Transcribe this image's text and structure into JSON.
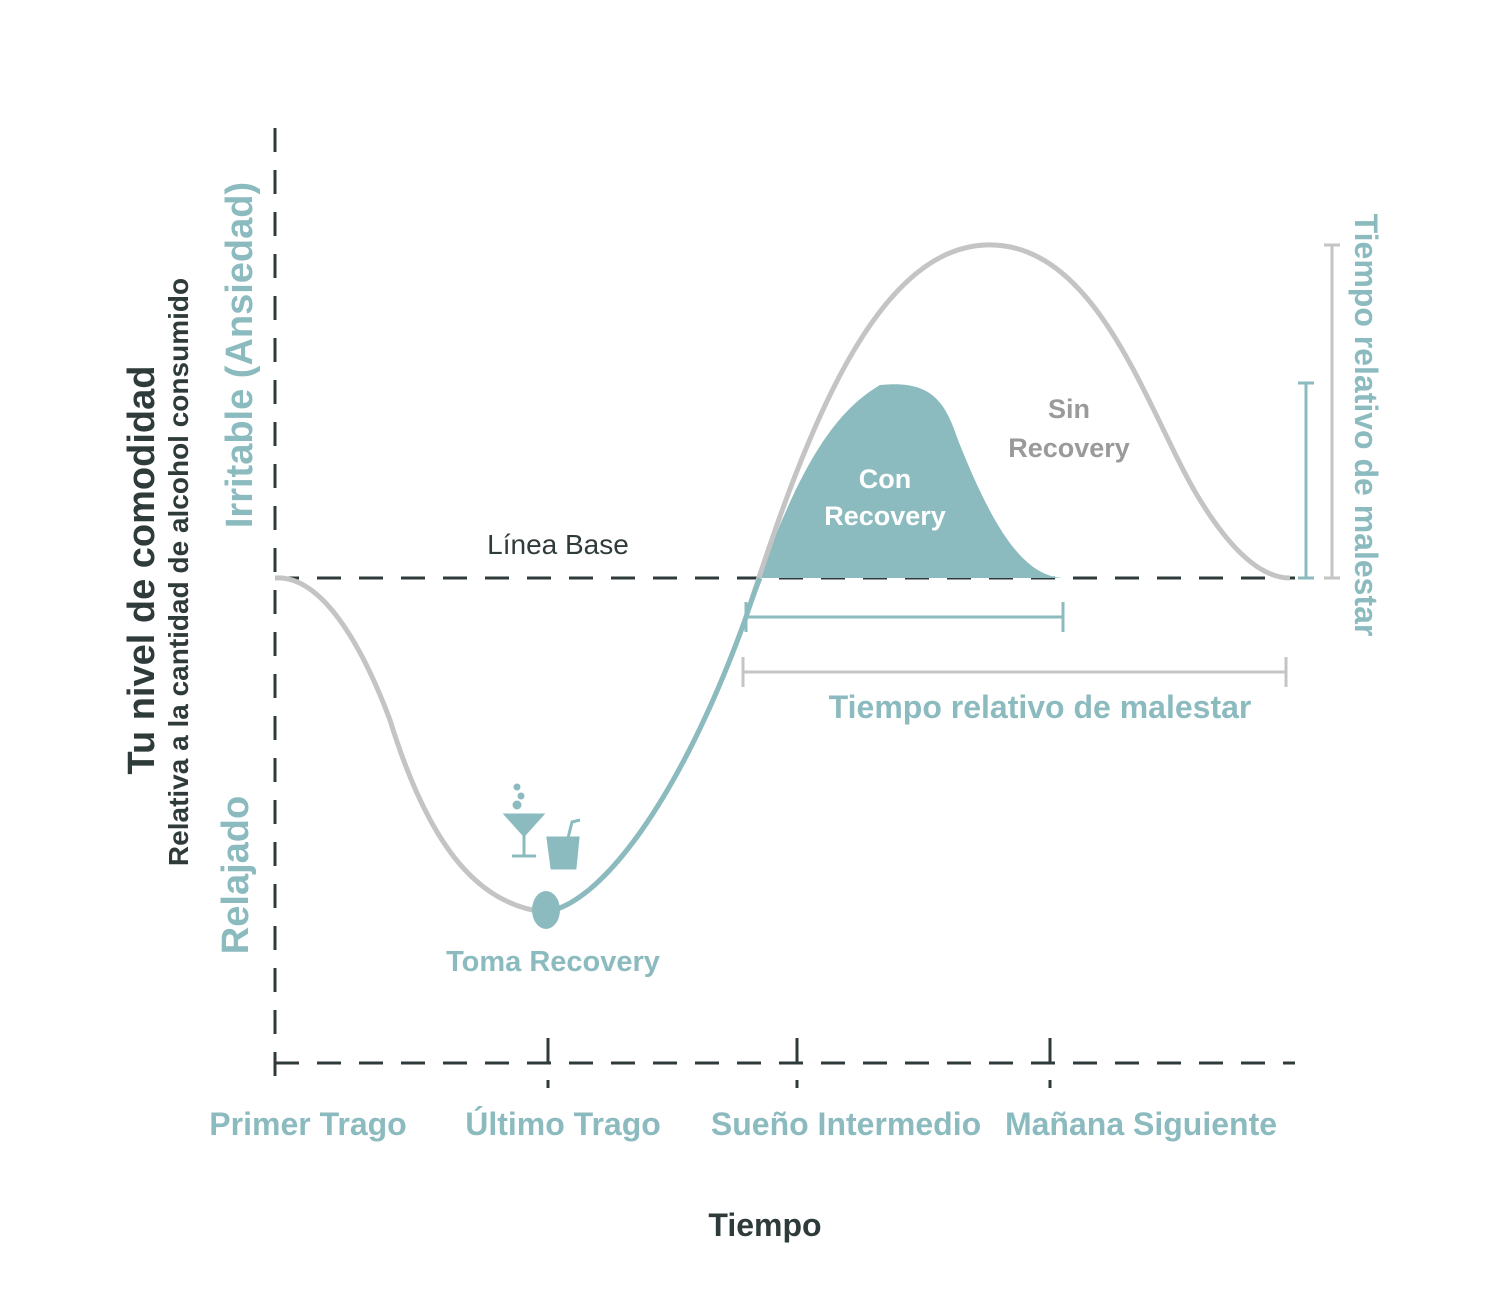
{
  "y_axis": {
    "title": "Tu nivel de comodidad",
    "subtitle": "Relativa a la cantidad de alcohol consumido",
    "top_label": "Irritable (Ansiedad)",
    "bottom_label": "Relajado"
  },
  "baseline_label": "Línea Base",
  "curves": {
    "with_recovery": [
      "Con",
      "Recovery"
    ],
    "without_recovery": [
      "Sin",
      "Recovery"
    ]
  },
  "marker_label": "Toma Recovery",
  "duration_labels": {
    "horizontal": "Tiempo relativo de malestar",
    "vertical": "Tiempo relativo de malestar"
  },
  "x_axis": {
    "categories": [
      "Primer Trago",
      "Último Trago",
      "Sueño Intermedio",
      "Mañana Siguiente"
    ],
    "title": "Tiempo"
  }
}
